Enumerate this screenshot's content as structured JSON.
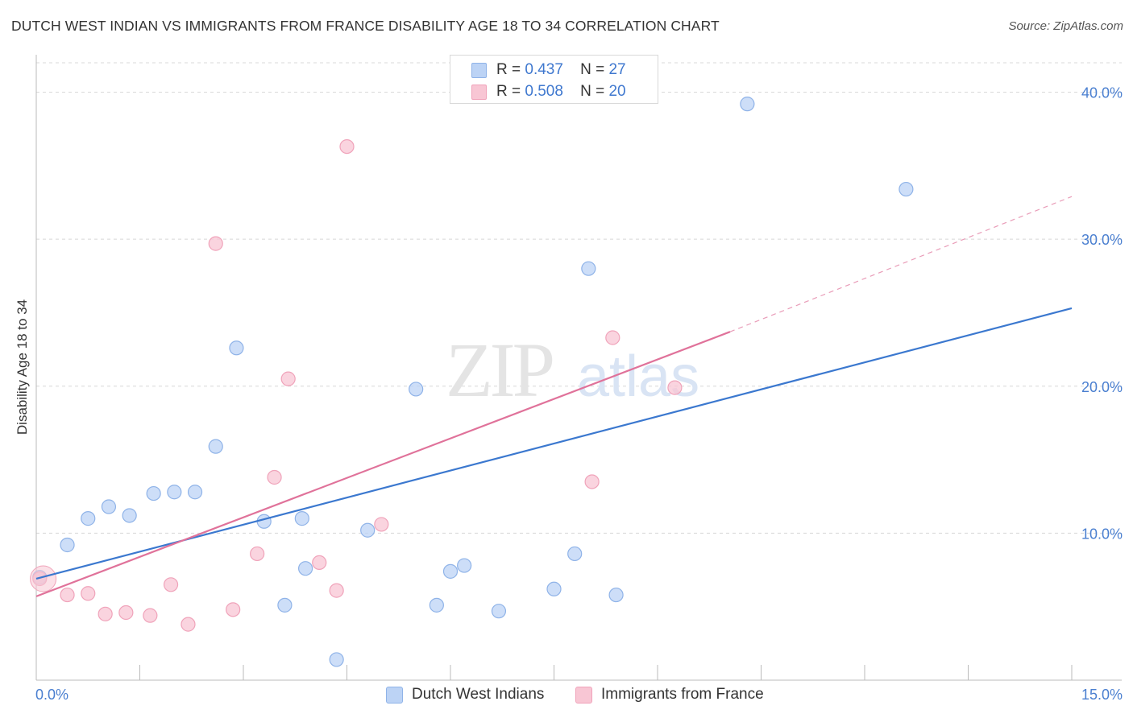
{
  "title": "DUTCH WEST INDIAN VS IMMIGRANTS FROM FRANCE DISABILITY AGE 18 TO 34 CORRELATION CHART",
  "source": "Source: ZipAtlas.com",
  "watermark": {
    "zip": "ZIP",
    "atlas": "atlas"
  },
  "legend": {
    "r_label": "R =",
    "n_label": "N =",
    "rows": [
      {
        "r": "0.437",
        "n": "27"
      },
      {
        "r": "0.508",
        "n": "20"
      }
    ]
  },
  "colors": {
    "blue_fill": "#bcd3f5",
    "blue_stroke": "#8fb3e8",
    "blue_line": "#3b78cf",
    "pink_fill": "#f8c6d4",
    "pink_stroke": "#f0a3ba",
    "pink_line": "#e0729a",
    "grid": "#d8d8d8",
    "tick_text": "#4a7fd0"
  },
  "chart_data": {
    "type": "scatter",
    "title": "DUTCH WEST INDIAN VS IMMIGRANTS FROM FRANCE DISABILITY AGE 18 TO 34 CORRELATION CHART",
    "xlabel": "",
    "ylabel": "Disability Age 18 to 34",
    "xlim": [
      0,
      15
    ],
    "ylim": [
      0,
      42
    ],
    "x_tick_labels": [
      "0.0%",
      "15.0%"
    ],
    "y_ticks": [
      10,
      20,
      30,
      40
    ],
    "y_tick_labels": [
      "10.0%",
      "20.0%",
      "30.0%",
      "40.0%"
    ],
    "series": [
      {
        "name": "Dutch West Indians",
        "color": "blue",
        "points": [
          [
            0.05,
            7.0
          ],
          [
            0.45,
            9.2
          ],
          [
            0.75,
            11.0
          ],
          [
            1.05,
            11.8
          ],
          [
            1.35,
            11.2
          ],
          [
            1.7,
            12.7
          ],
          [
            2.0,
            12.8
          ],
          [
            2.3,
            12.8
          ],
          [
            2.6,
            15.9
          ],
          [
            2.9,
            22.6
          ],
          [
            3.3,
            10.8
          ],
          [
            3.6,
            5.1
          ],
          [
            3.9,
            7.6
          ],
          [
            3.85,
            11.0
          ],
          [
            4.35,
            1.4
          ],
          [
            4.8,
            10.2
          ],
          [
            5.5,
            19.8
          ],
          [
            5.8,
            5.1
          ],
          [
            6.0,
            7.4
          ],
          [
            6.2,
            7.8
          ],
          [
            6.7,
            4.7
          ],
          [
            7.5,
            6.2
          ],
          [
            7.8,
            8.6
          ],
          [
            8.0,
            28.0
          ],
          [
            8.4,
            5.8
          ],
          [
            10.3,
            39.2
          ],
          [
            12.6,
            33.4
          ]
        ],
        "trend": {
          "x": [
            0,
            15
          ],
          "y": [
            6.9,
            25.3
          ]
        }
      },
      {
        "name": "Immigrants from France",
        "color": "pink",
        "points": [
          [
            0.05,
            6.9
          ],
          [
            0.45,
            5.8
          ],
          [
            0.75,
            5.9
          ],
          [
            1.0,
            4.5
          ],
          [
            1.3,
            4.6
          ],
          [
            1.65,
            4.4
          ],
          [
            1.95,
            6.5
          ],
          [
            2.2,
            3.8
          ],
          [
            2.6,
            29.7
          ],
          [
            2.85,
            4.8
          ],
          [
            3.2,
            8.6
          ],
          [
            3.45,
            13.8
          ],
          [
            3.65,
            20.5
          ],
          [
            4.1,
            8.0
          ],
          [
            4.35,
            6.1
          ],
          [
            4.5,
            36.3
          ],
          [
            5.0,
            10.6
          ],
          [
            8.05,
            13.5
          ],
          [
            8.35,
            23.3
          ],
          [
            9.25,
            19.9
          ]
        ],
        "trend": {
          "x": [
            0,
            10.05
          ],
          "y": [
            5.7,
            23.7
          ]
        },
        "trend_dashed": {
          "x": [
            10.05,
            15
          ],
          "y": [
            23.7,
            32.9
          ]
        }
      }
    ]
  },
  "bottom_legend": [
    "Dutch West Indians",
    "Immigrants from France"
  ]
}
